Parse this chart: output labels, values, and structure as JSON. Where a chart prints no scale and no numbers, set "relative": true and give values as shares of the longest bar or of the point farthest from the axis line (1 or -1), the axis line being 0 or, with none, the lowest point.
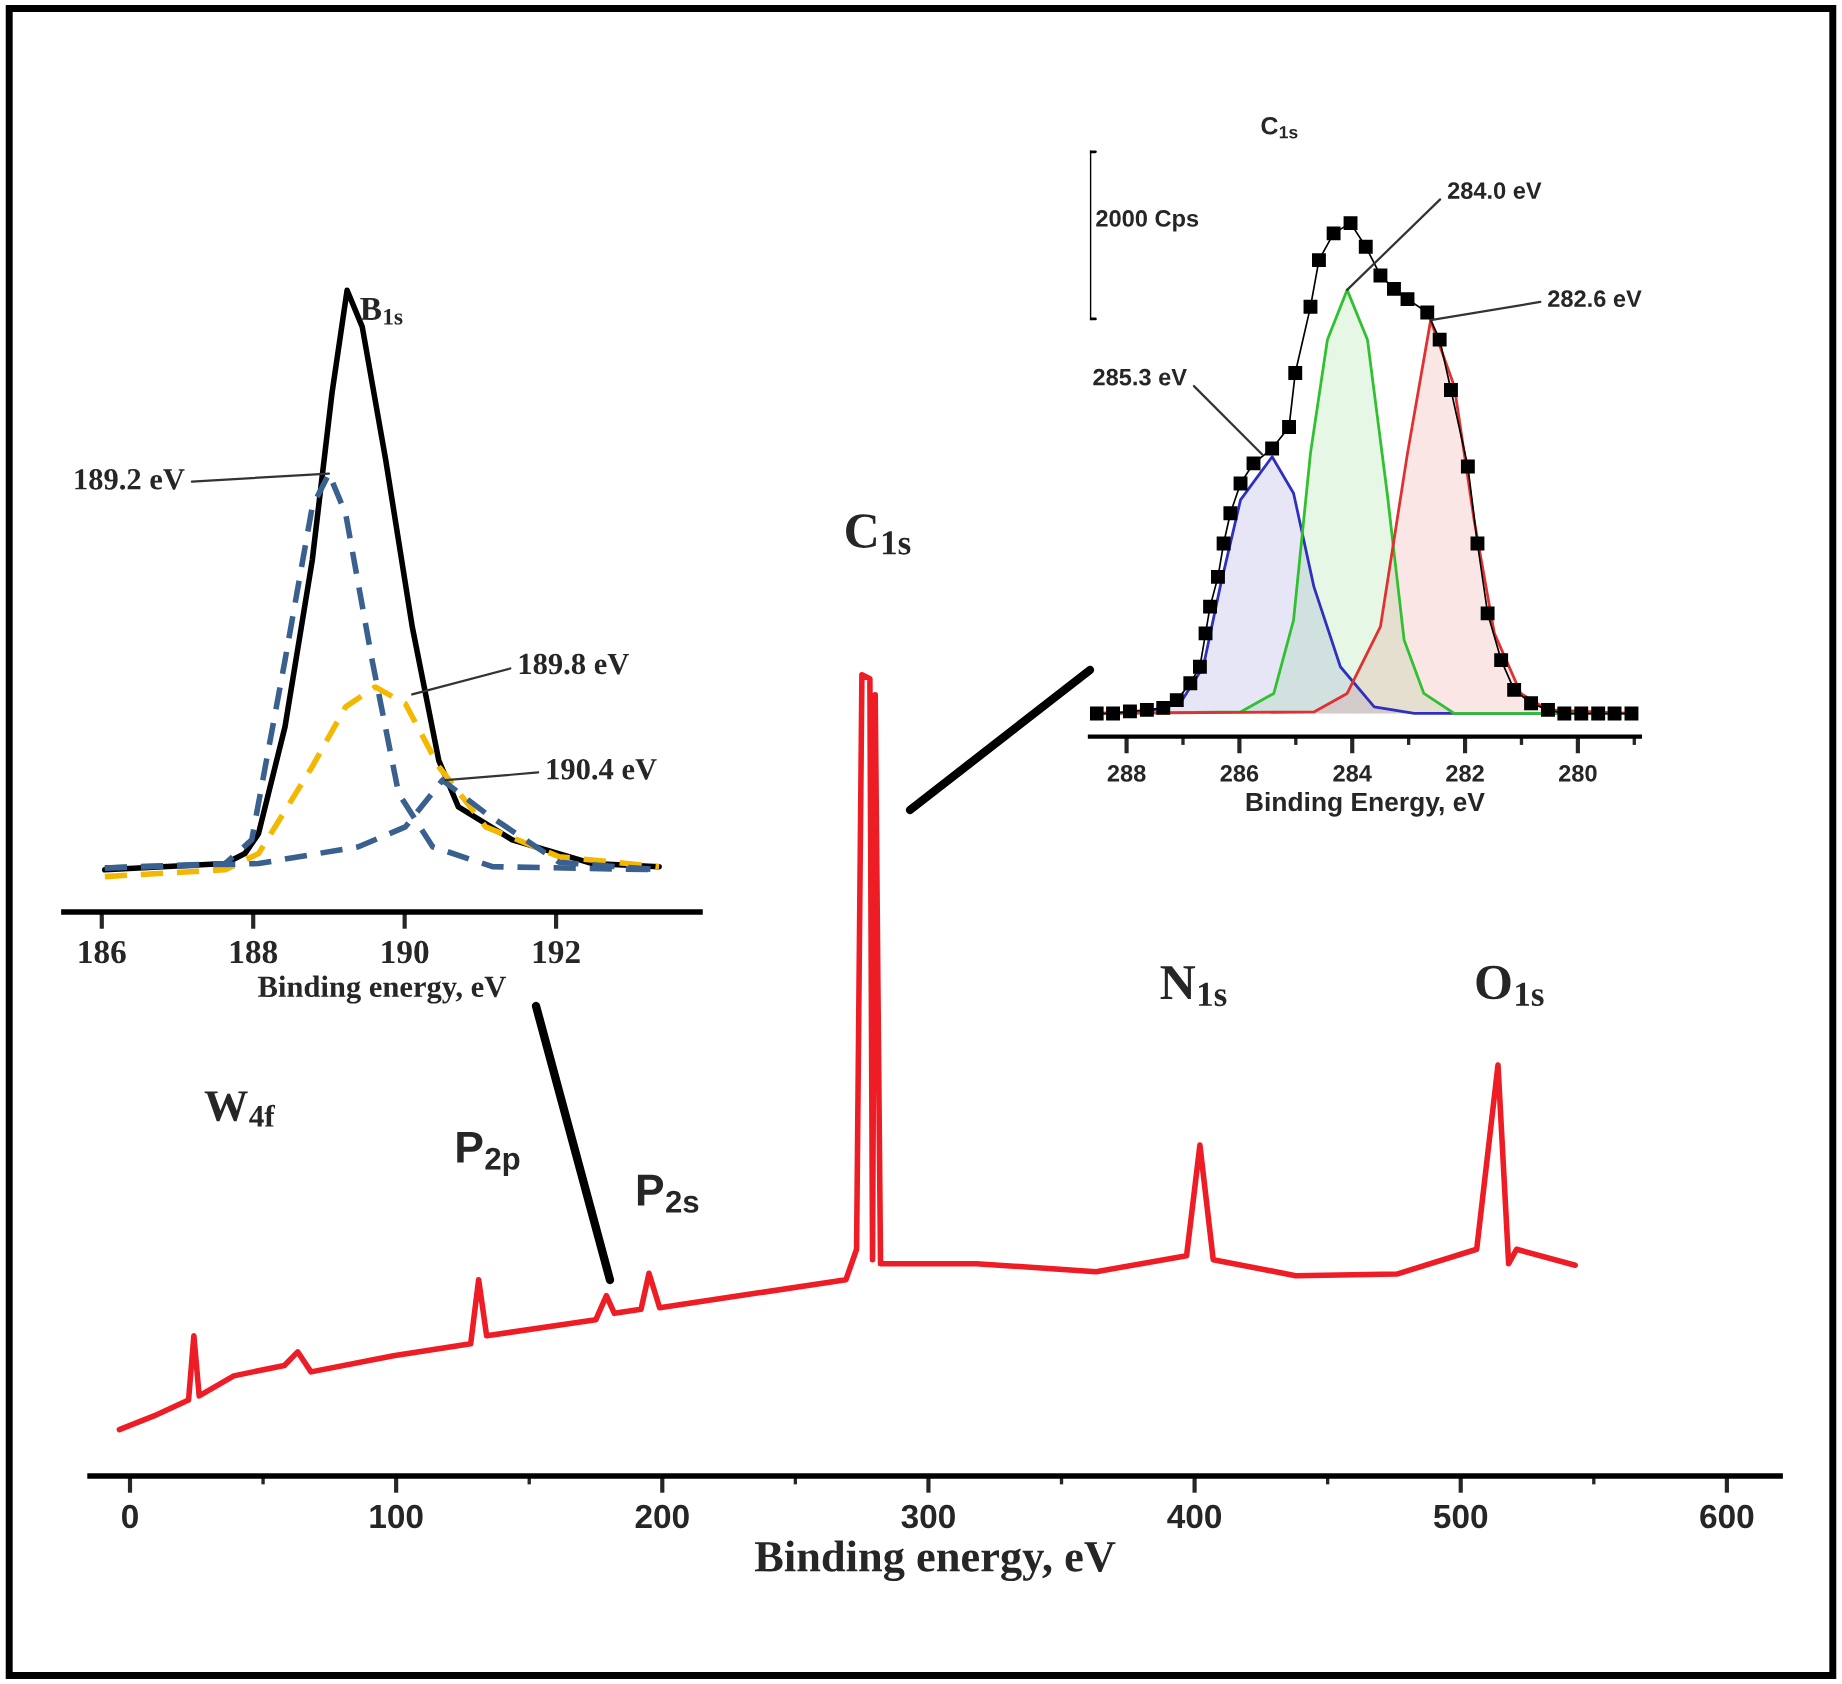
{
  "chart_data": [
    {
      "type": "line",
      "xlabel": "Binding energy, eV",
      "relative": true,
      "xlim": [
        -15,
        620
      ],
      "xticks": [
        0,
        {
          "value": 50,
          "label": null
        },
        100,
        {
          "value": 150,
          "label": null
        },
        200,
        {
          "value": 250,
          "label": null
        },
        300,
        {
          "value": 350,
          "label": null
        },
        400,
        {
          "value": 450,
          "label": null
        },
        500,
        {
          "value": 550,
          "label": null
        },
        600
      ],
      "series": [
        {
          "color": "#ee1c24",
          "x": [
            -4,
            9,
            22,
            24,
            26,
            39,
            58,
            63,
            68,
            99,
            128,
            131,
            134,
            175,
            179,
            182,
            192,
            195,
            199,
            235,
            269,
            273,
            275,
            278,
            279,
            280,
            282,
            318,
            363,
            397,
            402,
            407,
            438,
            476,
            506,
            514,
            518,
            521,
            543
          ],
          "values": [
            0.058,
            0.075,
            0.095,
            0.175,
            0.1,
            0.125,
            0.138,
            0.155,
            0.13,
            0.15,
            0.165,
            0.245,
            0.175,
            0.195,
            0.225,
            0.203,
            0.208,
            0.253,
            0.21,
            0.228,
            0.245,
            0.283,
            1.0,
            0.995,
            0.27,
            0.975,
            0.265,
            0.265,
            0.255,
            0.275,
            0.413,
            0.27,
            0.25,
            0.252,
            0.283,
            0.513,
            0.265,
            0.283,
            0.263
          ]
        }
      ],
      "annotations": [
        "W$_{4f}$",
        "P$_{2p}$",
        "P$_{2s}$",
        "C$_{1s}$",
        "N$_{1s}$",
        "O$_{1s}$"
      ]
    },
    {
      "type": "line",
      "title": "B$_{1s}$",
      "xlabel": "Binding energy, eV",
      "relative": true,
      "xlim": [
        185.5,
        193.9
      ],
      "xticks": [
        186,
        188,
        190,
        192
      ],
      "series": [
        {
          "color": "#000000",
          "line_style": "solid",
          "x": [
            186.04,
            187.63,
            187.89,
            188.07,
            188.42,
            188.78,
            189.04,
            189.24,
            189.44,
            189.75,
            190.1,
            190.45,
            190.71,
            191.42,
            192.48,
            193.36
          ],
          "values": [
            0.068,
            0.078,
            0.094,
            0.126,
            0.298,
            0.566,
            0.834,
            1.0,
            0.941,
            0.727,
            0.459,
            0.244,
            0.169,
            0.116,
            0.078,
            0.073
          ]
        },
        {
          "color": "#3a6090",
          "line_style": "dashed",
          "x": [
            186.04,
            187.63,
            187.98,
            188.42,
            188.78,
            189.0,
            189.22,
            189.57,
            189.92,
            190.37,
            191.16,
            193.36
          ],
          "values": [
            0.071,
            0.078,
            0.116,
            0.405,
            0.652,
            0.705,
            0.641,
            0.405,
            0.191,
            0.105,
            0.073,
            0.068
          ]
        },
        {
          "color": "#f5b800",
          "line_style": "dashed",
          "x": [
            186.04,
            187.63,
            188.07,
            188.78,
            189.22,
            189.61,
            190.01,
            190.45,
            191.07,
            192.04,
            193.36
          ],
          "values": [
            0.057,
            0.068,
            0.094,
            0.234,
            0.33,
            0.362,
            0.335,
            0.234,
            0.137,
            0.089,
            0.073
          ]
        },
        {
          "color": "#3a6090",
          "line_style": "dashed",
          "x": [
            186.04,
            188.07,
            189.39,
            190.01,
            190.5,
            191.07,
            192.04,
            193.36
          ],
          "values": [
            0.071,
            0.078,
            0.105,
            0.137,
            0.212,
            0.159,
            0.08,
            0.068
          ]
        }
      ],
      "annotations": [
        {
          "text": "189.2 eV",
          "x": 189.0,
          "y": 0.705
        },
        {
          "text": "189.8 eV",
          "x": 190.1,
          "y": 0.35
        },
        {
          "text": "190.4 eV",
          "x": 190.54,
          "y": 0.212
        }
      ]
    },
    {
      "type": "line",
      "title": "C$_{1s}$",
      "xlabel": "Binding Energy, eV",
      "relative": true,
      "xlim": [
        288.65,
        278.9
      ],
      "xticks": [
        288,
        {
          "value": 287,
          "label": null
        },
        286,
        {
          "value": 285,
          "label": null
        },
        284,
        {
          "value": 283,
          "label": null
        },
        282,
        {
          "value": 281,
          "label": null
        },
        280,
        {
          "value": 279,
          "label": null
        }
      ],
      "series": [
        {
          "type": "area",
          "color": "#3030c0",
          "x": [
            288.53,
            287.64,
            287.05,
            286.64,
            286.34,
            285.98,
            285.42,
            285.04,
            284.68,
            284.21,
            283.61,
            282.9,
            279.11
          ],
          "values": [
            0.045,
            0.048,
            0.065,
            0.136,
            0.292,
            0.461,
            0.545,
            0.474,
            0.292,
            0.136,
            0.058,
            0.045,
            0.045
          ]
        },
        {
          "type": "area",
          "color": "#30c030",
          "x": [
            288.53,
            285.98,
            285.39,
            285.04,
            284.74,
            284.44,
            284.09,
            283.73,
            283.38,
            283.08,
            282.73,
            282.19,
            279.05
          ],
          "values": [
            0.045,
            0.048,
            0.084,
            0.227,
            0.552,
            0.773,
            0.87,
            0.773,
            0.474,
            0.188,
            0.084,
            0.045,
            0.045
          ]
        },
        {
          "type": "area",
          "color": "#e03030",
          "x": [
            288.53,
            284.68,
            284.09,
            283.5,
            283.02,
            282.61,
            282.19,
            281.84,
            281.48,
            281.01,
            280.53,
            279.05
          ],
          "values": [
            0.045,
            0.048,
            0.084,
            0.214,
            0.552,
            0.811,
            0.682,
            0.422,
            0.201,
            0.084,
            0.052,
            0.045
          ]
        },
        {
          "type": "line",
          "marker": "square",
          "color": "#000000",
          "x": [
            288.53,
            288.24,
            287.94,
            287.64,
            287.35,
            287.11,
            286.87,
            286.7,
            286.6,
            286.52,
            286.38,
            286.28,
            286.16,
            285.98,
            285.75,
            285.42,
            285.12,
            285.01,
            284.74,
            284.59,
            284.33,
            284.03,
            283.76,
            283.5,
            283.26,
            283.02,
            282.67,
            282.45,
            282.25,
            281.95,
            281.78,
            281.6,
            281.36,
            281.13,
            280.83,
            280.53,
            280.24,
            279.94,
            279.64,
            279.35,
            279.05
          ],
          "values": [
            0.045,
            0.045,
            0.049,
            0.052,
            0.056,
            0.071,
            0.104,
            0.136,
            0.201,
            0.253,
            0.311,
            0.376,
            0.435,
            0.493,
            0.532,
            0.561,
            0.603,
            0.708,
            0.837,
            0.928,
            0.98,
            1.0,
            0.954,
            0.898,
            0.872,
            0.852,
            0.826,
            0.773,
            0.675,
            0.526,
            0.376,
            0.24,
            0.149,
            0.091,
            0.065,
            0.052,
            0.045,
            0.045,
            0.045,
            0.045,
            0.045
          ]
        }
      ],
      "annotations": [
        "2000 Cps",
        {
          "text": "285.3 eV",
          "x": 285.6,
          "y": 0.55
        },
        {
          "text": "284.0 eV",
          "x": 284.09,
          "y": 0.87
        },
        {
          "text": "282.6 eV",
          "x": 282.61,
          "y": 0.811
        }
      ]
    }
  ]
}
